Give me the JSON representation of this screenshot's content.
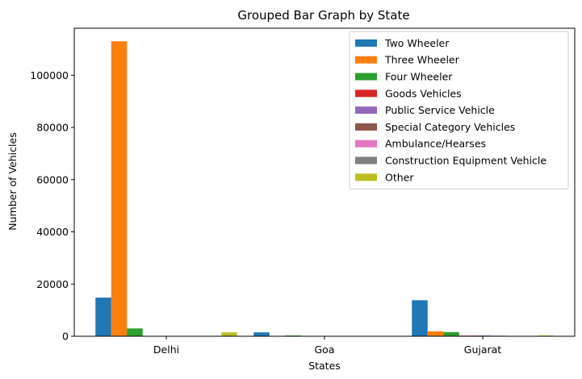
{
  "chart_data": {
    "type": "bar",
    "title": "Grouped Bar Graph by State",
    "xlabel": "States",
    "ylabel": "Number of Vehicles",
    "categories": [
      "Delhi",
      "Goa",
      "Gujarat"
    ],
    "ylim": [
      0,
      118000
    ],
    "yticks": [
      0,
      20000,
      40000,
      60000,
      80000,
      100000
    ],
    "legend_position": "top-right",
    "grid": false,
    "series": [
      {
        "name": "Two Wheeler",
        "color": "#1f77b4",
        "values": [
          14800,
          1500,
          13800
        ]
      },
      {
        "name": "Three Wheeler",
        "color": "#ff7f0e",
        "values": [
          113000,
          0,
          1900
        ]
      },
      {
        "name": "Four Wheeler",
        "color": "#2ca02c",
        "values": [
          3000,
          300,
          1600
        ]
      },
      {
        "name": "Goods Vehicles",
        "color": "#d62728",
        "values": [
          150,
          20,
          250
        ]
      },
      {
        "name": "Public Service Vehicle",
        "color": "#9467bd",
        "values": [
          100,
          10,
          300
        ]
      },
      {
        "name": "Special Category Vehicles",
        "color": "#8c564b",
        "values": [
          50,
          5,
          200
        ]
      },
      {
        "name": "Ambulance/Hearses",
        "color": "#e377c2",
        "values": [
          20,
          2,
          30
        ]
      },
      {
        "name": "Construction Equipment Vehicle",
        "color": "#7f7f7f",
        "values": [
          10,
          2,
          20
        ]
      },
      {
        "name": "Other",
        "color": "#bcbd22",
        "values": [
          1500,
          50,
          300
        ]
      }
    ]
  }
}
